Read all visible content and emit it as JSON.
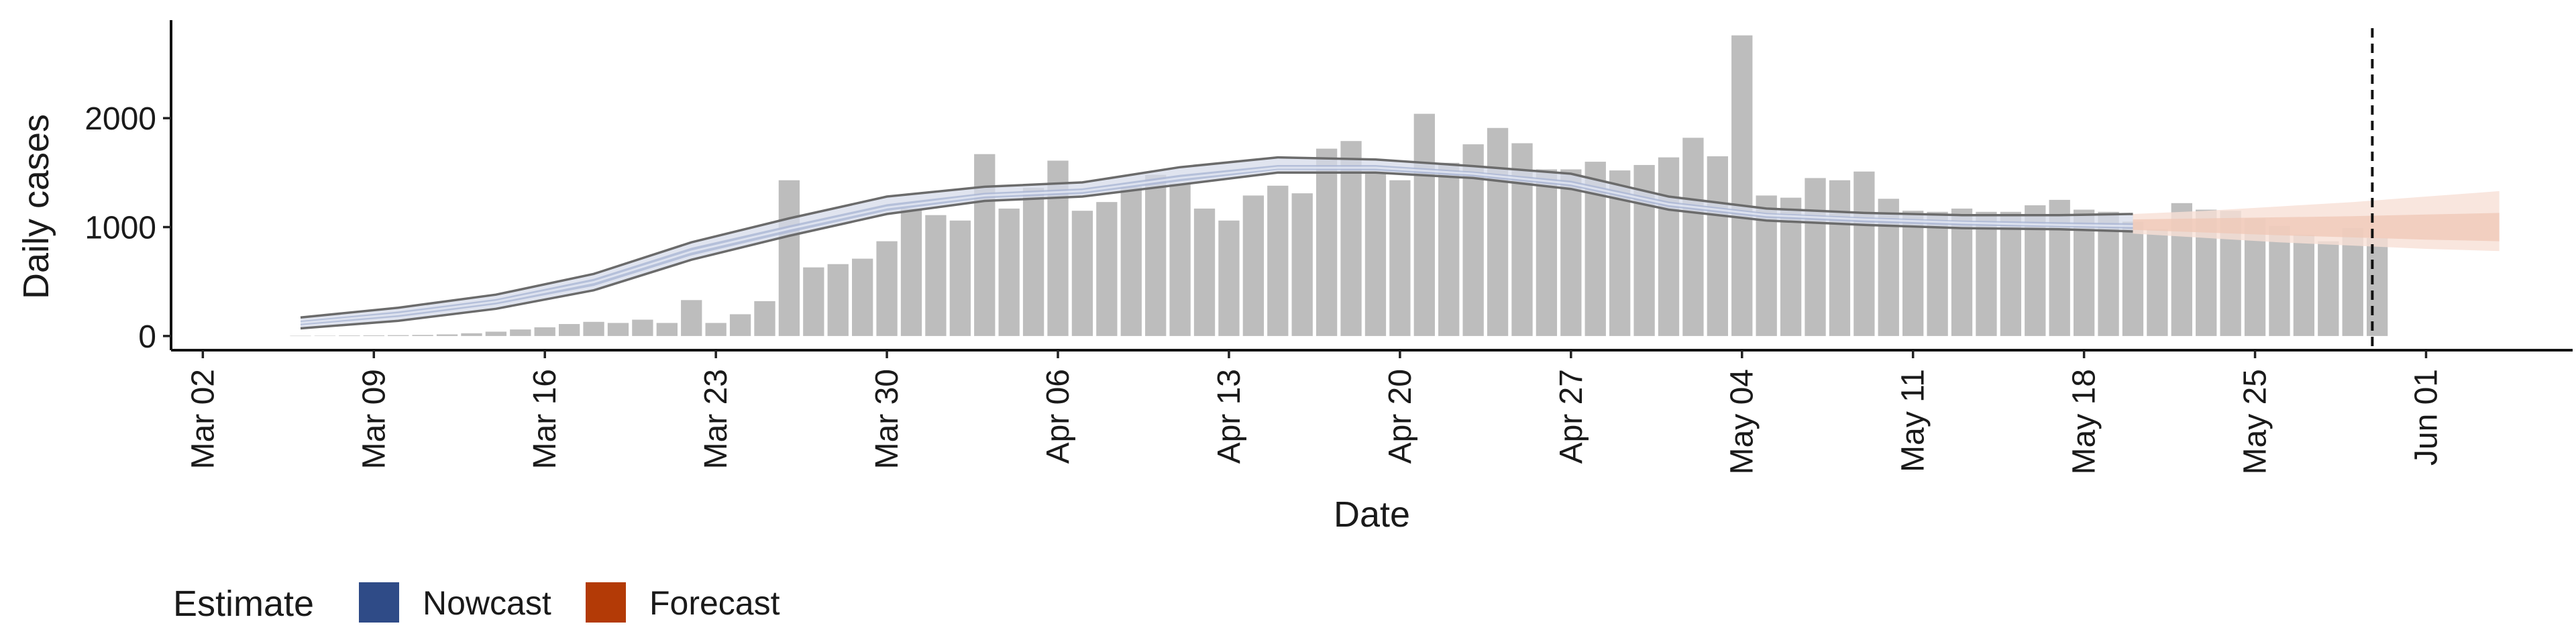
{
  "chart_data": {
    "type": "bar",
    "title": "",
    "xlabel": "Date",
    "ylabel": "Daily cases",
    "x_ticks": [
      "Mar 02",
      "Mar 09",
      "Mar 16",
      "Mar 23",
      "Mar 30",
      "Apr 06",
      "Apr 13",
      "Apr 20",
      "Apr 27",
      "May 04",
      "May 11",
      "May 18",
      "May 25",
      "Jun 01"
    ],
    "y_ticks": [
      "0",
      "1000",
      "2000"
    ],
    "ylim": [
      -130,
      2900
    ],
    "x_range_days": [
      -1.3,
      97.0
    ],
    "start_date": "Mar 02",
    "vline_day": 88.8,
    "grid": false,
    "legend": {
      "title": "Estimate",
      "position": "bottom-left",
      "items": [
        {
          "label": "Nowcast",
          "color": "#2f4b87"
        },
        {
          "label": "Forecast",
          "color": "#b33a06"
        }
      ]
    },
    "colors": {
      "bars": "#bdbdbd",
      "nowcast_outer": "#d5dbe9",
      "nowcast_inner": "#aab6d4",
      "forecast_outer": "#f7e0d6",
      "forecast_inner": "#efc7b5",
      "bound_line": "#6b6b6b"
    },
    "series": [
      {
        "name": "Reported cases",
        "kind": "bar",
        "start_day": 4,
        "values": [
          2,
          3,
          5,
          6,
          8,
          10,
          15,
          25,
          40,
          60,
          80,
          110,
          130,
          120,
          150,
          120,
          330,
          120,
          200,
          320,
          1430,
          630,
          660,
          710,
          870,
          1170,
          1110,
          1060,
          1670,
          1170,
          1360,
          1610,
          1150,
          1230,
          1370,
          1480,
          1400,
          1170,
          1060,
          1290,
          1380,
          1310,
          1720,
          1790,
          1490,
          1430,
          2040,
          1590,
          1760,
          1910,
          1770,
          1530,
          1530,
          1600,
          1520,
          1570,
          1640,
          1820,
          1650,
          2760,
          1290,
          1270,
          1450,
          1430,
          1510,
          1260,
          1150,
          1140,
          1170,
          1140,
          1140,
          1200,
          1250,
          1160,
          1140,
          1050,
          980,
          1220,
          1160,
          1150,
          1080,
          1010,
          930,
          870,
          990,
          900
        ]
      },
      {
        "name": "Nowcast",
        "kind": "band",
        "x": [
          4,
          8,
          12,
          16,
          20,
          24,
          28,
          32,
          36,
          40,
          44,
          48,
          52,
          56,
          60,
          64,
          68,
          72,
          76,
          79
        ],
        "lower": [
          70,
          140,
          250,
          420,
          700,
          920,
          1120,
          1240,
          1280,
          1390,
          1500,
          1500,
          1450,
          1350,
          1160,
          1060,
          1020,
          990,
          980,
          960
        ],
        "lower_inner": [
          100,
          175,
          290,
          460,
          740,
          950,
          1150,
          1265,
          1305,
          1420,
          1525,
          1520,
          1465,
          1375,
          1185,
          1085,
          1045,
          1015,
          1000,
          985
        ],
        "median": [
          120,
          200,
          315,
          495,
          775,
          985,
          1180,
          1290,
          1330,
          1450,
          1545,
          1545,
          1490,
          1400,
          1210,
          1110,
          1070,
          1040,
          1020,
          1010
        ],
        "upper_inner": [
          140,
          225,
          340,
          525,
          810,
          1015,
          1210,
          1315,
          1355,
          1480,
          1570,
          1570,
          1510,
          1425,
          1235,
          1130,
          1090,
          1060,
          1045,
          1035
        ],
        "upper": [
          170,
          260,
          380,
          570,
          860,
          1080,
          1280,
          1370,
          1410,
          1550,
          1640,
          1620,
          1560,
          1490,
          1280,
          1170,
          1130,
          1110,
          1110,
          1120
        ]
      },
      {
        "name": "Forecast",
        "kind": "band",
        "x": [
          79,
          82,
          85,
          88,
          91,
          94
        ],
        "lower": [
          940,
          900,
          860,
          830,
          800,
          780
        ],
        "lower_inner": [
          975,
          950,
          925,
          905,
          885,
          870
        ],
        "median": [
          1020,
          1010,
          1000,
          995,
          990,
          990
        ],
        "upper_inner": [
          1070,
          1080,
          1090,
          1100,
          1115,
          1130
        ],
        "upper": [
          1120,
          1150,
          1190,
          1230,
          1280,
          1330
        ]
      }
    ]
  }
}
